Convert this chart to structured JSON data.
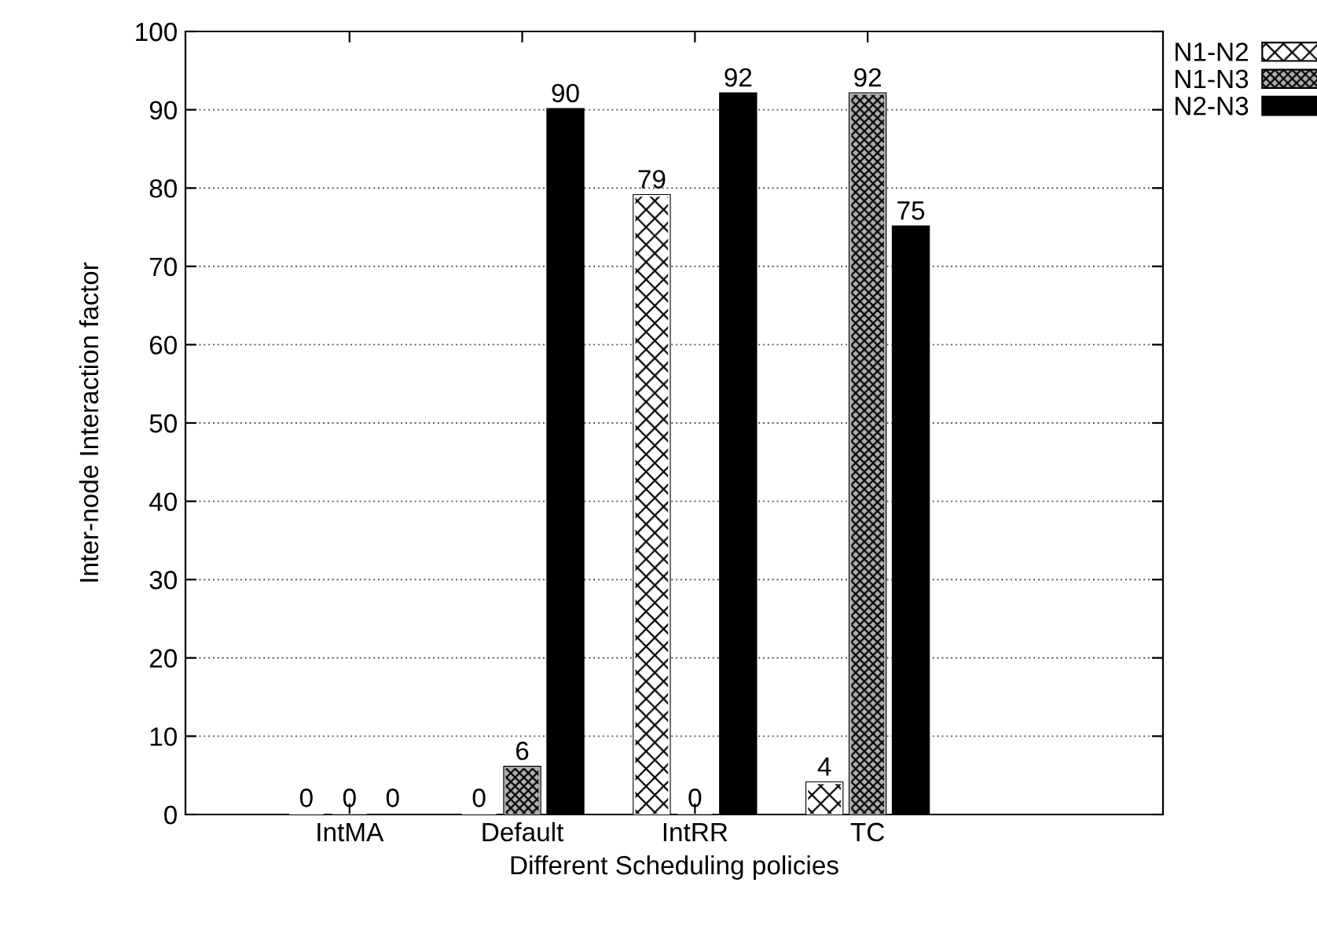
{
  "chart_data": {
    "type": "bar",
    "xlabel": "Different Scheduling policies",
    "ylabel": "Inter-node Interaction factor",
    "categories": [
      "IntMA",
      "Default",
      "IntRR",
      "TC"
    ],
    "series": [
      {
        "name": "N1-N2",
        "color": "#ffffff",
        "values": [
          0,
          0,
          79,
          4
        ]
      },
      {
        "name": "N1-N3",
        "color": "#b0b0b0",
        "values": [
          0,
          6,
          0,
          92
        ]
      },
      {
        "name": "N2-N3",
        "color": "#000000",
        "values": [
          0,
          90,
          92,
          75
        ]
      }
    ],
    "ylim": [
      0,
      100
    ],
    "yticks": [
      0,
      10,
      20,
      30,
      40,
      50,
      60,
      70,
      80,
      90,
      100
    ],
    "grid": "y",
    "legend": "top right",
    "data_labels": true
  }
}
